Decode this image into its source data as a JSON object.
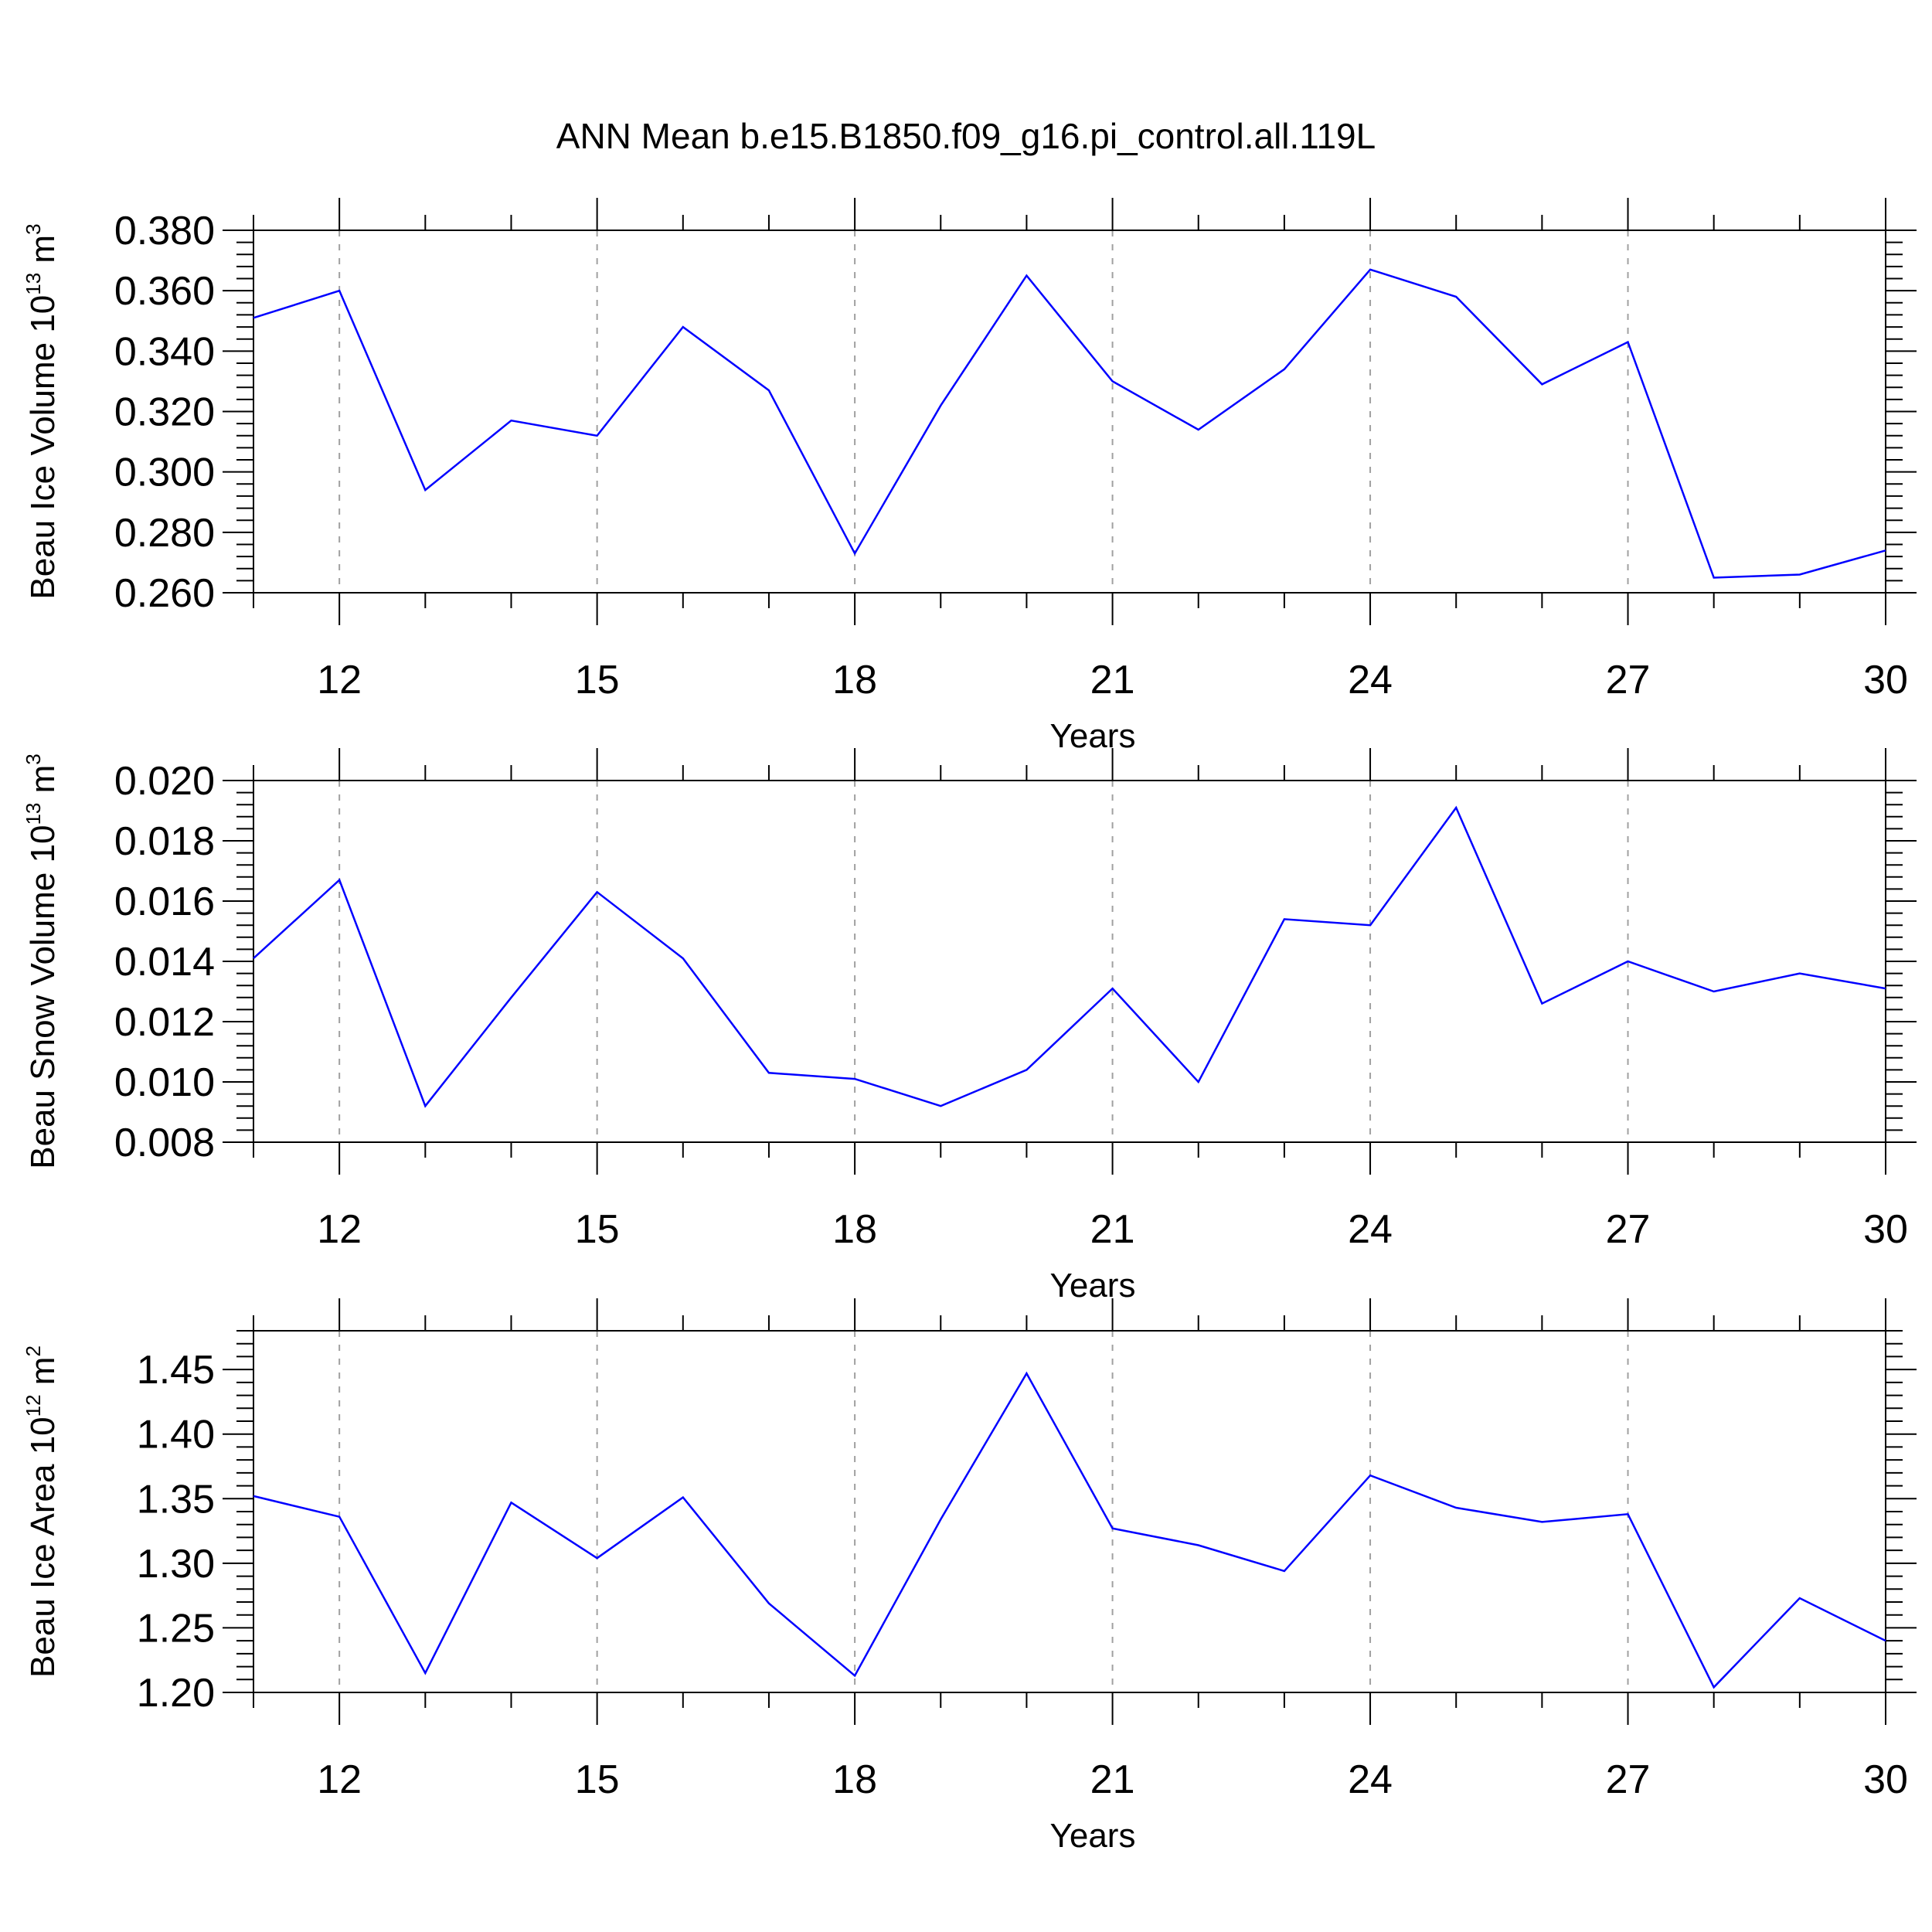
{
  "figure": {
    "title": "ANN Mean b.e15.B1850.f09_g16.pi_control.all.119L"
  },
  "chart_data": [
    {
      "type": "line",
      "ylabel_parts": [
        "Beau Ice Volume 10",
        "13",
        " m",
        "3"
      ],
      "xlabel": "Years",
      "xlim": [
        11,
        30
      ],
      "x_ticks": [
        12,
        15,
        18,
        21,
        24,
        27,
        30
      ],
      "x_tick_labels": [
        "12",
        "15",
        "18",
        "21",
        "24",
        "27",
        "30"
      ],
      "ylim": [
        0.26,
        0.38
      ],
      "y_ticks": [
        0.26,
        0.28,
        0.3,
        0.32,
        0.34,
        0.36,
        0.38
      ],
      "y_tick_labels": [
        "0.260",
        "0.280",
        "0.300",
        "0.320",
        "0.340",
        "0.360",
        "0.380"
      ],
      "grid": "vertical-dashed",
      "line_color": "#0000ff",
      "x": [
        11,
        12,
        13,
        14,
        15,
        16,
        17,
        18,
        19,
        20,
        21,
        22,
        23,
        24,
        25,
        26,
        27,
        28,
        29,
        30
      ],
      "values": [
        0.351,
        0.36,
        0.294,
        0.317,
        0.312,
        0.348,
        0.327,
        0.273,
        0.322,
        0.365,
        0.33,
        0.314,
        0.334,
        0.367,
        0.358,
        0.329,
        0.343,
        0.265,
        0.266,
        0.274
      ]
    },
    {
      "type": "line",
      "ylabel_parts": [
        "Beau Snow Volume 10",
        "13",
        " m",
        "3"
      ],
      "xlabel": "Years",
      "xlim": [
        11,
        30
      ],
      "x_ticks": [
        12,
        15,
        18,
        21,
        24,
        27,
        30
      ],
      "x_tick_labels": [
        "12",
        "15",
        "18",
        "21",
        "24",
        "27",
        "30"
      ],
      "ylim": [
        0.008,
        0.02
      ],
      "y_ticks": [
        0.008,
        0.01,
        0.012,
        0.014,
        0.016,
        0.018,
        0.02
      ],
      "y_tick_labels": [
        "0.008",
        "0.010",
        "0.012",
        "0.014",
        "0.016",
        "0.018",
        "0.020"
      ],
      "grid": "vertical-dashed",
      "line_color": "#0000ff",
      "x": [
        11,
        12,
        13,
        14,
        15,
        16,
        17,
        18,
        19,
        20,
        21,
        22,
        23,
        24,
        25,
        26,
        27,
        28,
        29,
        30
      ],
      "values": [
        0.0141,
        0.0167,
        0.0092,
        0.0128,
        0.0163,
        0.0141,
        0.0103,
        0.0101,
        0.0092,
        0.0104,
        0.0131,
        0.01,
        0.0154,
        0.0152,
        0.0191,
        0.0126,
        0.014,
        0.013,
        0.0136,
        0.0131
      ]
    },
    {
      "type": "line",
      "ylabel_parts": [
        "Beau Ice Area 10",
        "12",
        " m",
        "2"
      ],
      "xlabel": "Years",
      "xlim": [
        11,
        30
      ],
      "x_ticks": [
        12,
        15,
        18,
        21,
        24,
        27,
        30
      ],
      "x_tick_labels": [
        "12",
        "15",
        "18",
        "21",
        "24",
        "27",
        "30"
      ],
      "ylim": [
        1.2,
        1.48
      ],
      "y_ticks": [
        1.2,
        1.25,
        1.3,
        1.35,
        1.4,
        1.45
      ],
      "y_tick_labels": [
        "1.20",
        "1.25",
        "1.30",
        "1.35",
        "1.40",
        "1.45"
      ],
      "grid": "vertical-dashed",
      "line_color": "#0000ff",
      "x": [
        11,
        12,
        13,
        14,
        15,
        16,
        17,
        18,
        19,
        20,
        21,
        22,
        23,
        24,
        25,
        26,
        27,
        28,
        29,
        30
      ],
      "values": [
        1.352,
        1.336,
        1.215,
        1.347,
        1.304,
        1.351,
        1.269,
        1.213,
        1.334,
        1.447,
        1.327,
        1.314,
        1.294,
        1.368,
        1.343,
        1.332,
        1.338,
        1.204,
        1.273,
        1.24
      ]
    }
  ]
}
